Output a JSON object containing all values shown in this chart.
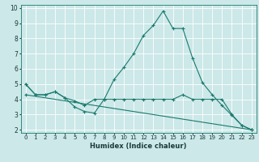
{
  "xlabel": "Humidex (Indice chaleur)",
  "ylabel": "",
  "xlim": [
    -0.5,
    23.5
  ],
  "ylim": [
    1.8,
    10.2
  ],
  "yticks": [
    2,
    3,
    4,
    5,
    6,
    7,
    8,
    9,
    10
  ],
  "xticks": [
    0,
    1,
    2,
    3,
    4,
    5,
    6,
    7,
    8,
    9,
    10,
    11,
    12,
    13,
    14,
    15,
    16,
    17,
    18,
    19,
    20,
    21,
    22,
    23
  ],
  "background_color": "#cce8e8",
  "grid_color": "#ffffff",
  "line_color": "#1a7a6e",
  "lines": [
    {
      "x": [
        0,
        1,
        2,
        3,
        4,
        5,
        6,
        7,
        8,
        9,
        10,
        11,
        12,
        13,
        14,
        15,
        16,
        17,
        18,
        19,
        20,
        21,
        22,
        23
      ],
      "y": [
        5.0,
        4.3,
        4.3,
        4.5,
        4.1,
        3.5,
        3.2,
        3.1,
        4.0,
        5.3,
        6.1,
        7.0,
        8.2,
        8.85,
        9.8,
        8.65,
        8.65,
        6.7,
        5.1,
        4.3,
        3.6,
        2.95,
        2.3,
        2.0
      ]
    },
    {
      "x": [
        0,
        1,
        2,
        3,
        4,
        5,
        6,
        7,
        8,
        9,
        10,
        11,
        12,
        13,
        14,
        15,
        16,
        17,
        18,
        19,
        20,
        21,
        22,
        23
      ],
      "y": [
        5.0,
        4.3,
        4.3,
        4.5,
        4.1,
        3.9,
        3.6,
        4.0,
        4.0,
        4.0,
        4.0,
        4.0,
        4.0,
        4.0,
        4.0,
        4.0,
        4.3,
        4.0,
        4.0,
        4.0,
        4.0,
        3.0,
        2.3,
        2.0
      ]
    },
    {
      "x": [
        0,
        23
      ],
      "y": [
        4.3,
        2.0
      ]
    }
  ]
}
